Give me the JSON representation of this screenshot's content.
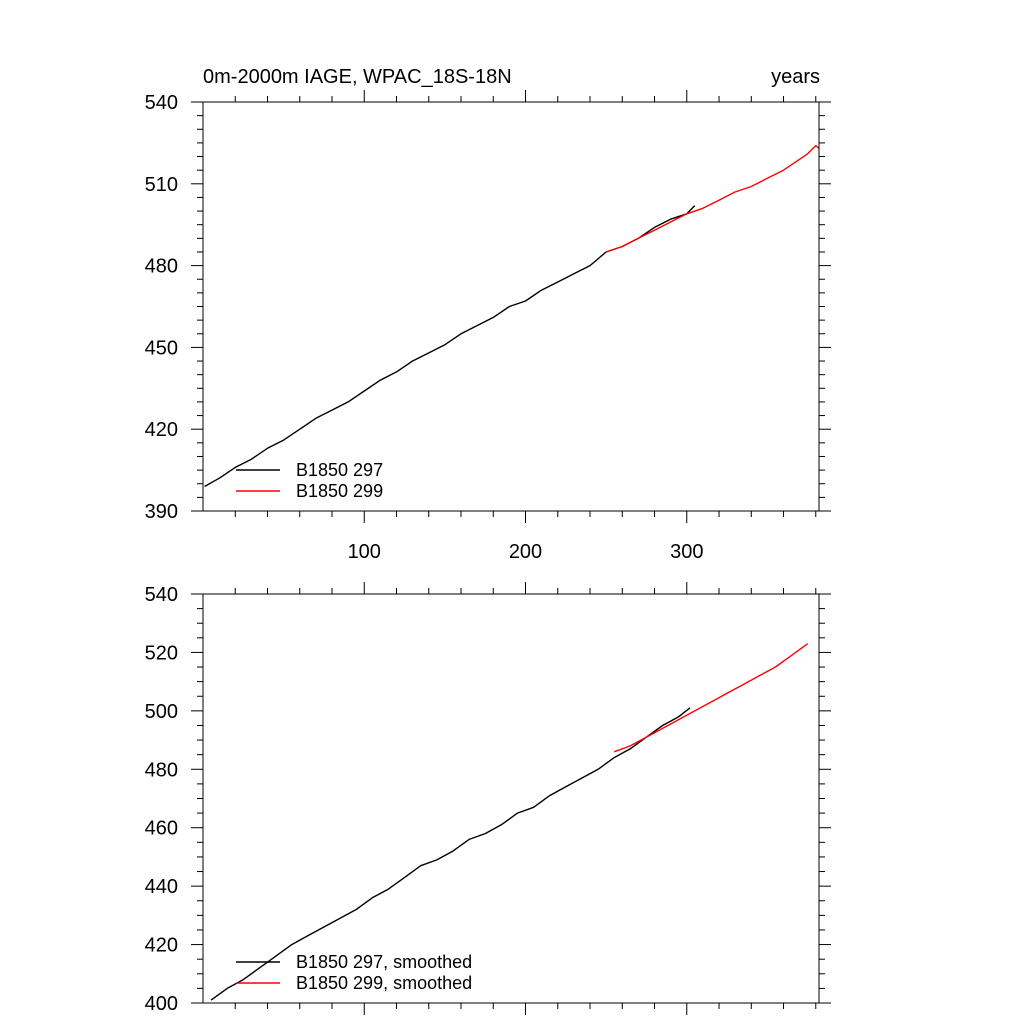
{
  "chart_data": [
    {
      "type": "line",
      "title": "0m-2000m IAGE, WPAC_18S-18N",
      "title_right": "years",
      "xlabel": "",
      "ylabel": "",
      "xlim": [
        0,
        382
      ],
      "ylim": [
        390,
        540
      ],
      "xticks": [
        100,
        200,
        300
      ],
      "xtick_labels": [
        "100",
        "200",
        "300"
      ],
      "yticks": [
        390,
        420,
        450,
        480,
        510,
        540
      ],
      "ytick_labels": [
        "390",
        "420",
        "450",
        "480",
        "510",
        "540"
      ],
      "grid": false,
      "legend_position": "bottom-left",
      "series": [
        {
          "name": "B1850 297",
          "color": "#000000",
          "x": [
            1,
            10,
            20,
            30,
            40,
            50,
            60,
            70,
            80,
            90,
            100,
            110,
            120,
            130,
            140,
            150,
            160,
            170,
            180,
            190,
            200,
            210,
            220,
            230,
            240,
            250,
            260,
            270,
            280,
            290,
            300,
            305
          ],
          "y": [
            399,
            402,
            406,
            409,
            413,
            416,
            420,
            424,
            427,
            430,
            434,
            438,
            441,
            445,
            448,
            451,
            455,
            458,
            461,
            465,
            467,
            471,
            474,
            477,
            480,
            485,
            487,
            490,
            494,
            497,
            499,
            502
          ]
        },
        {
          "name": "B1850 299",
          "color": "#ff0000",
          "x": [
            250,
            260,
            270,
            280,
            290,
            300,
            310,
            320,
            330,
            340,
            350,
            360,
            370,
            375,
            380,
            382
          ],
          "y": [
            485,
            487,
            490,
            493,
            496,
            499,
            501,
            504,
            507,
            509,
            512,
            515,
            519,
            521,
            524,
            523
          ]
        }
      ]
    },
    {
      "type": "line",
      "title": "",
      "xlabel": "",
      "ylabel": "",
      "xlim": [
        0,
        382
      ],
      "ylim": [
        400,
        540
      ],
      "xticks": [
        100,
        200,
        300
      ],
      "xtick_labels": [],
      "yticks": [
        400,
        420,
        440,
        460,
        480,
        500,
        520,
        540
      ],
      "ytick_labels": [
        "400",
        "420",
        "440",
        "460",
        "480",
        "500",
        "520",
        "540"
      ],
      "grid": false,
      "legend_position": "bottom-left",
      "series": [
        {
          "name": "B1850 297, smoothed",
          "color": "#000000",
          "x": [
            5,
            15,
            25,
            35,
            45,
            55,
            65,
            75,
            85,
            95,
            105,
            115,
            125,
            135,
            145,
            155,
            165,
            175,
            185,
            195,
            205,
            215,
            225,
            235,
            245,
            255,
            265,
            275,
            285,
            295,
            302
          ],
          "y": [
            401,
            405,
            408,
            412,
            416,
            420,
            423,
            426,
            429,
            432,
            436,
            439,
            443,
            447,
            449,
            452,
            456,
            458,
            461,
            465,
            467,
            471,
            474,
            477,
            480,
            484,
            487,
            491,
            495,
            498,
            501
          ]
        },
        {
          "name": "B1850 299, smoothed",
          "color": "#ff0000",
          "x": [
            255,
            265,
            275,
            285,
            295,
            305,
            315,
            325,
            335,
            345,
            355,
            365,
            375
          ],
          "y": [
            486,
            488,
            491,
            494,
            497,
            500,
            503,
            506,
            509,
            512,
            515,
            519,
            523
          ]
        }
      ]
    }
  ]
}
